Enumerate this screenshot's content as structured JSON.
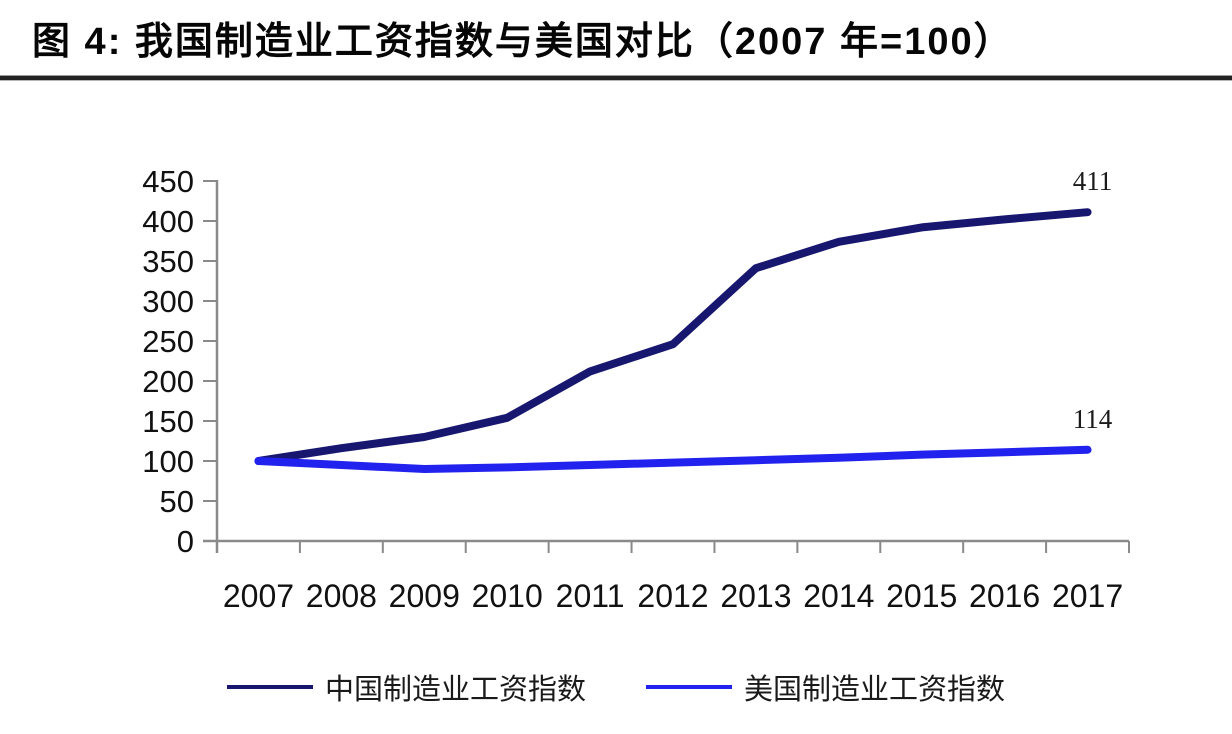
{
  "page": {
    "title": "图 4:  我国制造业工资指数与美国对比（2007 年=100）"
  },
  "chart_data": {
    "type": "line",
    "title": "图 4:  我国制造业工资指数与美国对比（2007 年=100）",
    "categories": [
      "2007",
      "2008",
      "2009",
      "2010",
      "2011",
      "2012",
      "2013",
      "2014",
      "2015",
      "2016",
      "2017"
    ],
    "series": [
      {
        "name": "中国制造业工资指数",
        "color": "#171770",
        "values": [
          100,
          116,
          130,
          154,
          212,
          246,
          341,
          374,
          392,
          402,
          411
        ],
        "end_label": "411"
      },
      {
        "name": "美国制造业工资指数",
        "color": "#2222EE",
        "values": [
          100,
          95,
          90,
          92,
          95,
          98,
          101,
          104,
          108,
          111,
          114
        ],
        "end_label": "114"
      }
    ],
    "ylim": [
      0,
      450
    ],
    "yticks": [
      0,
      50,
      100,
      150,
      200,
      250,
      300,
      350,
      400,
      450
    ],
    "grid": "off",
    "legend_position": "bottom",
    "axis_color": "#8a8a8a",
    "tick_label_color": "#111111",
    "data_label_color": "#1a1a1a"
  }
}
